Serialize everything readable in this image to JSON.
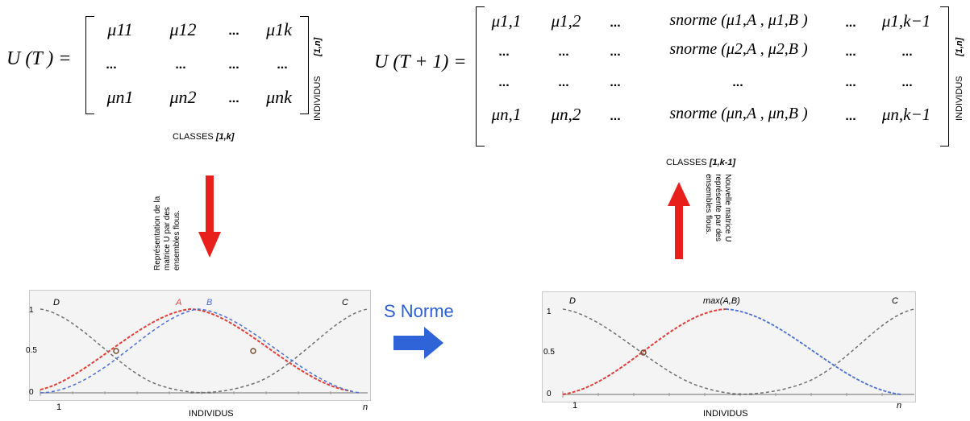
{
  "left_matrix": {
    "lhs": "U (T ) =",
    "rows": [
      [
        "μ11",
        "μ12",
        "...",
        "μ1k"
      ],
      [
        "...",
        "...",
        "...",
        "..."
      ],
      [
        "μn1",
        "μn2",
        "...",
        "μnk"
      ]
    ],
    "row_label": "INDIVIDUS",
    "row_range": "[1,n]",
    "col_label": "CLASSES",
    "col_range": "[1,k]"
  },
  "right_matrix": {
    "lhs": "U (T + 1) =",
    "rows": [
      [
        "μ1,1",
        "μ1,2",
        "...",
        "snorme (μ1,A , μ1,B )",
        "...",
        "μ1,k−1"
      ],
      [
        "...",
        "...",
        "...",
        "snorme (μ2,A , μ2,B )",
        "...",
        "..."
      ],
      [
        "...",
        "...",
        "...",
        "...",
        "...",
        "..."
      ],
      [
        "μn,1",
        "μn,2",
        "...",
        "snorme (μn,A , μn,B )",
        "...",
        "μn,k−1"
      ]
    ],
    "row_label": "INDIVIDUS",
    "row_range": "[1,n]",
    "col_label": "CLASSES",
    "col_range": "[1,k-1]"
  },
  "arrow_down_text": "Représentation de la matrice U par des ensembles flous.",
  "arrow_down_lines": [
    "Représentation de la",
    "matrice U  par  des",
    "ensembles flous."
  ],
  "arrow_up_lines": [
    "Nouvelle matrice U",
    "représente par des",
    "ensembles flous."
  ],
  "snorme_label": "S Norme",
  "colors": {
    "red": "#e8201c",
    "blue": "#2f63d8",
    "curve_red": "#e0403a",
    "curve_blue": "#4a6fd8",
    "curve_gray": "#707070"
  },
  "left_plot": {
    "labels": {
      "D": "D",
      "A": "A",
      "B": "B",
      "C": "C"
    },
    "yticks": [
      "1",
      "0.5",
      "0"
    ],
    "x_start": "1",
    "x_end": "n",
    "xlabel": "INDIVIDUS"
  },
  "right_plot": {
    "labels": {
      "D": "D",
      "max": "max(A,B)",
      "C": "C"
    },
    "yticks": [
      "1",
      "0.5",
      "0"
    ],
    "x_start": "1",
    "x_end": "n",
    "xlabel": "INDIVIDUS"
  }
}
